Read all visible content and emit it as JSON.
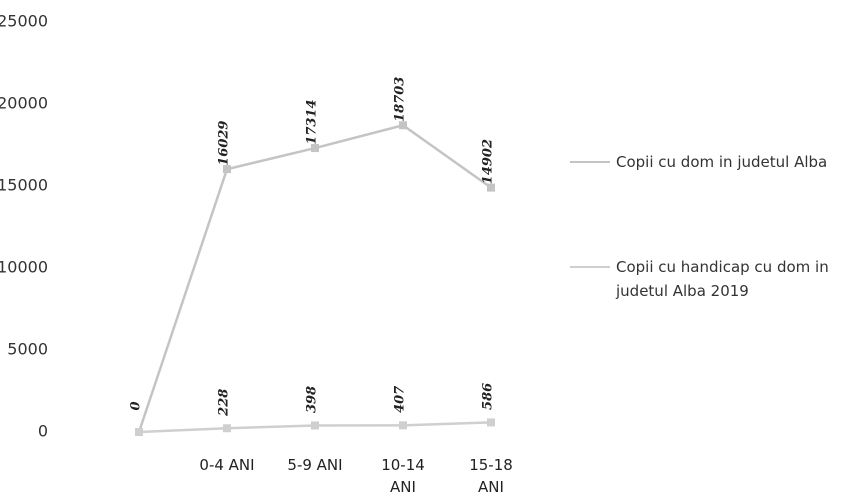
{
  "chart_data": {
    "type": "line",
    "categories": [
      null,
      "0-4 ANI",
      "5-9 ANI",
      "10-14 ANI",
      "15-18 ANI"
    ],
    "series": [
      {
        "name": "Copii cu dom in judetul Alba",
        "color": "#c4c4c4",
        "values": [
          0,
          16029,
          17314,
          18703,
          14902
        ]
      },
      {
        "name": "Copii cu handicap cu dom in judetul Alba 2019",
        "color": "#cfcfcf",
        "values": [
          0,
          228,
          398,
          407,
          586
        ],
        "value_labels": [
          null,
          "228",
          "398",
          "407",
          "586"
        ]
      }
    ],
    "ylim": [
      0,
      25000
    ],
    "yticks": [
      0,
      5000,
      10000,
      15000,
      20000,
      25000
    ],
    "grid": false,
    "legend": "right"
  }
}
